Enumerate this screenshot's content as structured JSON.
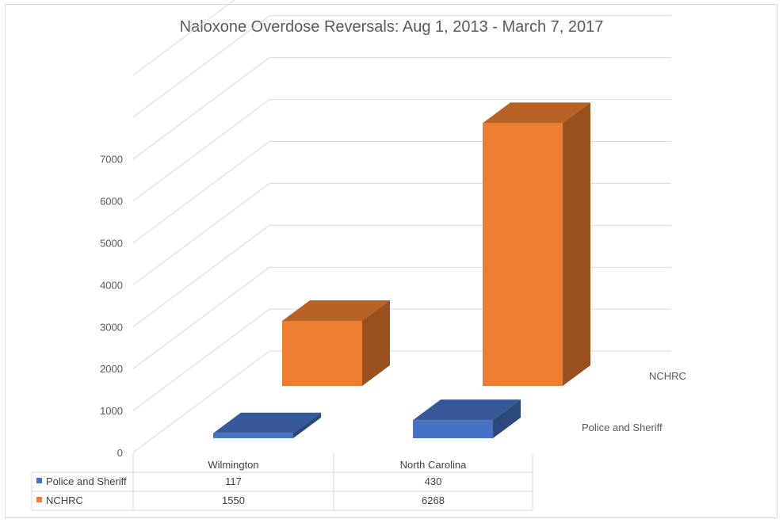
{
  "chart_data": {
    "type": "bar",
    "title": "Naloxone Overdose Reversals: Aug 1, 2013 - March 7, 2017",
    "categories": [
      "Wilmington",
      "North Carolina"
    ],
    "series": [
      {
        "name": "Police and Sheriff",
        "values": [
          117,
          430
        ],
        "color": "#4472c4"
      },
      {
        "name": "NCHRC",
        "values": [
          1550,
          6268
        ],
        "color": "#ed7d31"
      }
    ],
    "yticks": [
      "0",
      "1000",
      "2000",
      "3000",
      "4000",
      "5000",
      "6000",
      "7000"
    ],
    "ylim": [
      0,
      7000
    ],
    "grid": true,
    "data_table": true
  }
}
